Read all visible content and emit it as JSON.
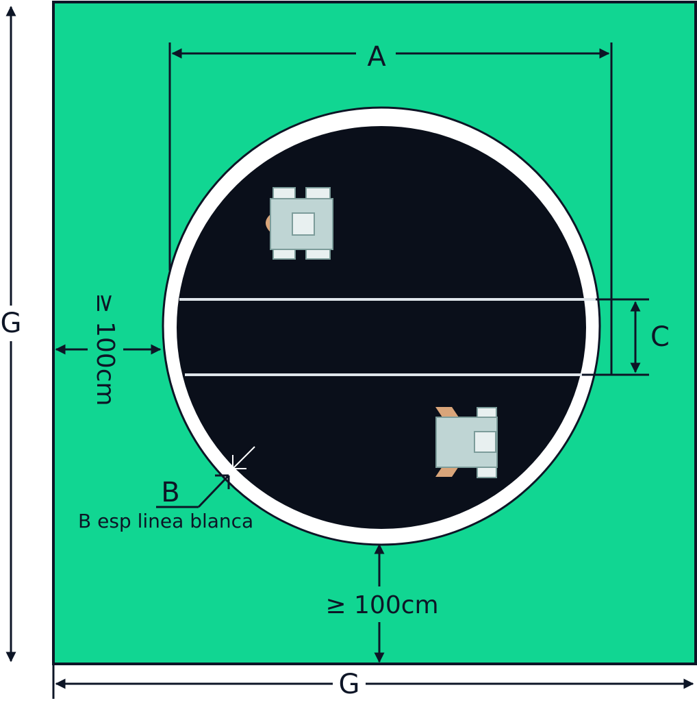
{
  "labels": {
    "A": "A",
    "B": "B",
    "C": "C",
    "G_left": "G",
    "G_bottom": "G",
    "min_clearance_left": "≥ 100cm",
    "min_clearance_bottom": "≥ 100cm",
    "b_note": "B esp linea blanca"
  },
  "colors": {
    "field": "#11d692",
    "field_border": "#0d1526",
    "circle_fill": "#0a0f1a",
    "white_line": "#ffffff",
    "robot_body": "#bfd5d4",
    "robot_wheel": "#e8f0f0",
    "robot_outline": "#7c9c9a",
    "robot_arm": "#d9a57a",
    "dimension_line": "#0d1526"
  },
  "icons": {
    "robot_top": "robot-icon",
    "robot_bottom": "robot-icon"
  }
}
